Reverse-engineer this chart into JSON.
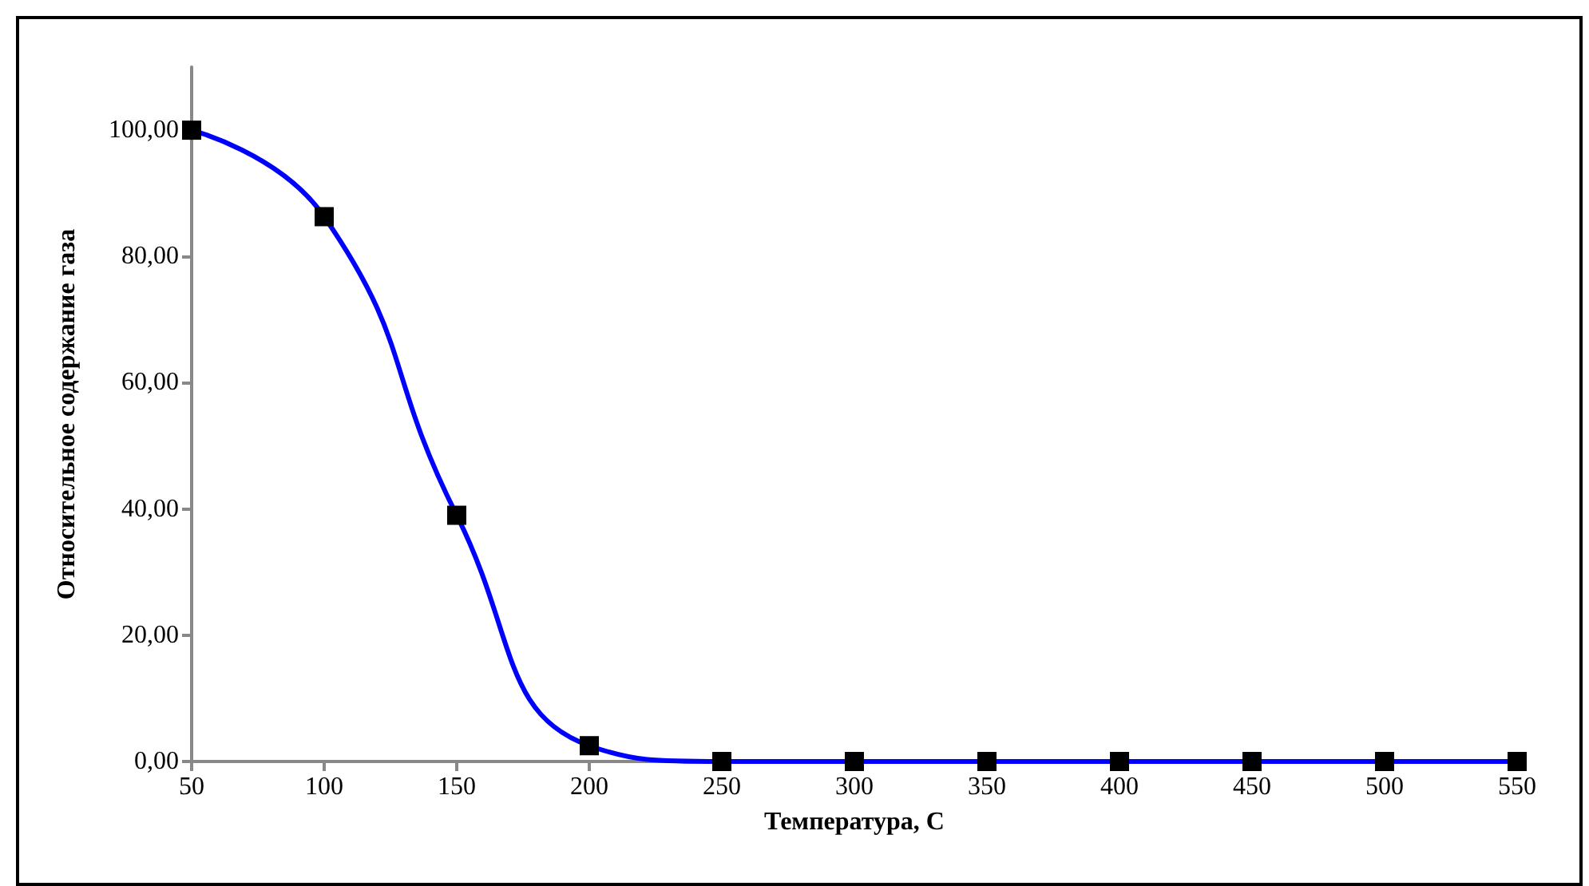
{
  "chart_data": {
    "type": "line",
    "xlabel": "Температура, С",
    "ylabel": "Относительное содержание газа",
    "x": [
      50,
      100,
      150,
      200,
      250,
      300,
      350,
      400,
      450,
      500,
      550
    ],
    "series": [
      {
        "color": "#0000ff",
        "values": [
          100,
          86.3,
          39,
          2.5,
          0,
          0,
          0,
          0,
          0,
          0,
          0
        ]
      }
    ],
    "xlim": [
      50,
      550
    ],
    "xticks": [
      50,
      100,
      150,
      200,
      250,
      300,
      350,
      400,
      450,
      500,
      550
    ],
    "ylim": [
      0,
      110
    ],
    "yticks": [
      {
        "value": 0,
        "label": "0,00"
      },
      {
        "value": 20,
        "label": "20,00"
      },
      {
        "value": 40,
        "label": "40,00"
      },
      {
        "value": 60,
        "label": "60,00"
      },
      {
        "value": 80,
        "label": "80,00"
      },
      {
        "value": 100,
        "label": "100,00"
      }
    ],
    "marker": "square",
    "grid": false,
    "line_style": "solid"
  }
}
